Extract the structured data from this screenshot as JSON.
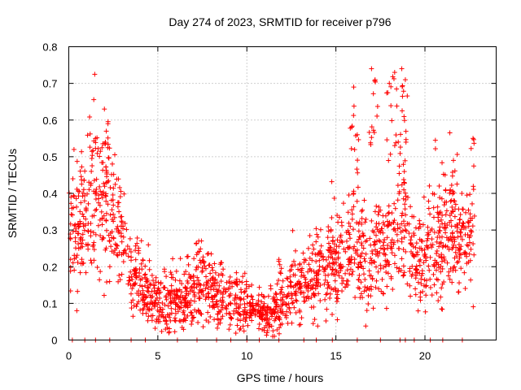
{
  "chart_data": {
    "type": "scatter",
    "title": "Day 274 of 2023, SRMTID for receiver p796",
    "xlabel": "GPS time / hours",
    "ylabel": "SRMTID / TECUs",
    "xlim": [
      0,
      24
    ],
    "ylim": [
      0,
      0.8
    ],
    "xticks": [
      0,
      5,
      10,
      15,
      20
    ],
    "yticks": [
      0,
      0.1,
      0.2,
      0.3,
      0.4,
      0.5,
      0.6,
      0.7,
      0.8
    ],
    "xtick_labels": [
      "0",
      "5",
      "10",
      "15",
      "20"
    ],
    "ytick_labels": [
      "0",
      "0.1",
      "0.2",
      "0.3",
      "0.4",
      "0.5",
      "0.6",
      "0.7",
      "0.8"
    ],
    "grid": true,
    "marker": "+",
    "color": "#ff0000",
    "series": [
      {
        "name": "SRMTID",
        "trend_anchors": [
          [
            0.0,
            0.3
          ],
          [
            0.5,
            0.3
          ],
          [
            1.0,
            0.32
          ],
          [
            1.5,
            0.36
          ],
          [
            2.0,
            0.38
          ],
          [
            2.5,
            0.36
          ],
          [
            3.0,
            0.27
          ],
          [
            3.5,
            0.2
          ],
          [
            4.0,
            0.16
          ],
          [
            4.5,
            0.12
          ],
          [
            5.0,
            0.1
          ],
          [
            5.5,
            0.095
          ],
          [
            6.0,
            0.1
          ],
          [
            6.5,
            0.11
          ],
          [
            7.0,
            0.12
          ],
          [
            7.5,
            0.15
          ],
          [
            8.0,
            0.13
          ],
          [
            8.5,
            0.12
          ],
          [
            9.0,
            0.11
          ],
          [
            9.5,
            0.1
          ],
          [
            10.0,
            0.1
          ],
          [
            10.5,
            0.09
          ],
          [
            11.0,
            0.07
          ],
          [
            11.5,
            0.07
          ],
          [
            12.0,
            0.1
          ],
          [
            12.5,
            0.12
          ],
          [
            13.0,
            0.14
          ],
          [
            13.5,
            0.16
          ],
          [
            14.0,
            0.18
          ],
          [
            14.5,
            0.2
          ],
          [
            15.0,
            0.21
          ],
          [
            15.5,
            0.24
          ],
          [
            16.0,
            0.28
          ],
          [
            16.5,
            0.22
          ],
          [
            17.0,
            0.2
          ],
          [
            17.5,
            0.25
          ],
          [
            18.0,
            0.27
          ],
          [
            18.5,
            0.3
          ],
          [
            19.0,
            0.3
          ],
          [
            19.5,
            0.22
          ],
          [
            20.0,
            0.2
          ],
          [
            20.5,
            0.25
          ],
          [
            21.0,
            0.28
          ],
          [
            21.5,
            0.3
          ],
          [
            22.0,
            0.26
          ],
          [
            22.5,
            0.27
          ],
          [
            22.8,
            0.28
          ]
        ],
        "peaks": [
          [
            1.5,
            0.55
          ],
          [
            2.0,
            0.63
          ],
          [
            2.2,
            0.59
          ],
          [
            16.0,
            0.69
          ],
          [
            16.2,
            0.56
          ],
          [
            17.0,
            0.74
          ],
          [
            17.2,
            0.71
          ],
          [
            18.0,
            0.7
          ],
          [
            18.3,
            0.73
          ],
          [
            18.7,
            0.74
          ],
          [
            18.9,
            0.71
          ],
          [
            18.5,
            0.54
          ],
          [
            20.8,
            0.42
          ],
          [
            21.6,
            0.49
          ],
          [
            22.7,
            0.55
          ],
          [
            7.3,
            0.27
          ],
          [
            11.8,
            0.22
          ],
          [
            4.9,
            0.17
          ]
        ],
        "zero_points": [
          0.2,
          0.9,
          1.5,
          2.3,
          3.5,
          4.3,
          6.1,
          7.2,
          8.3,
          9.1,
          10.0,
          10.7,
          11.8,
          13.2,
          13.9,
          14.8,
          16.2,
          17.5,
          18.6,
          18.9,
          19.4,
          20.3,
          21.0,
          22.1
        ]
      }
    ]
  }
}
